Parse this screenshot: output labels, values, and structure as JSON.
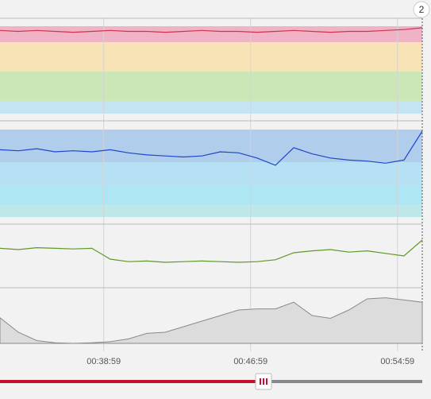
{
  "badge": "2",
  "chart_data": [
    {
      "type": "line",
      "color": "#d2334f",
      "xlim": [
        2000,
        3380
      ],
      "ylim": [
        0,
        100
      ],
      "x": [
        2000,
        2060,
        2120,
        2180,
        2240,
        2300,
        2360,
        2420,
        2480,
        2540,
        2600,
        2660,
        2720,
        2780,
        2840,
        2900,
        2960,
        3020,
        3080,
        3140,
        3200,
        3260,
        3320,
        3380
      ],
      "values": [
        91,
        90,
        91,
        90,
        89,
        90,
        91,
        90,
        90,
        89,
        90,
        91,
        90,
        90,
        89,
        90,
        91,
        90,
        89,
        90,
        90,
        91,
        92,
        94
      ]
    },
    {
      "type": "line",
      "color": "#1f47c8",
      "xlim": [
        2000,
        3380
      ],
      "ylim": [
        0,
        100
      ],
      "x": [
        2000,
        2060,
        2120,
        2180,
        2240,
        2300,
        2360,
        2420,
        2480,
        2540,
        2600,
        2660,
        2720,
        2780,
        2840,
        2900,
        2960,
        3020,
        3080,
        3140,
        3200,
        3260,
        3320,
        3380
      ],
      "values": [
        72,
        71,
        73,
        70,
        71,
        70,
        72,
        69,
        67,
        66,
        65,
        66,
        70,
        69,
        64,
        57,
        74,
        68,
        64,
        62,
        61,
        59,
        62,
        90
      ]
    },
    {
      "type": "line",
      "color": "#5d9a2a",
      "xlim": [
        2000,
        3380
      ],
      "ylim": [
        0,
        100
      ],
      "x": [
        2000,
        2060,
        2120,
        2180,
        2240,
        2300,
        2360,
        2420,
        2480,
        2540,
        2600,
        2660,
        2720,
        2780,
        2840,
        2900,
        2960,
        3020,
        3080,
        3140,
        3200,
        3260,
        3320,
        3380
      ],
      "values": [
        62,
        60,
        63,
        62,
        61,
        62,
        45,
        41,
        42,
        40,
        41,
        42,
        41,
        40,
        41,
        44,
        55,
        58,
        60,
        56,
        58,
        54,
        50,
        75
      ]
    },
    {
      "type": "area",
      "color": "#8a8a8a",
      "xlim": [
        2000,
        3380
      ],
      "ylim": [
        0,
        100
      ],
      "x": [
        2000,
        2060,
        2120,
        2180,
        2240,
        2300,
        2360,
        2420,
        2480,
        2540,
        2600,
        2660,
        2720,
        2780,
        2840,
        2900,
        2960,
        3020,
        3080,
        3140,
        3200,
        3260,
        3320,
        3380
      ],
      "values": [
        46,
        20,
        5,
        1,
        0,
        1,
        3,
        8,
        18,
        20,
        30,
        40,
        50,
        60,
        62,
        62,
        74,
        50,
        45,
        60,
        80,
        82,
        78,
        74
      ],
      "xticks": [
        {
          "value": 2339,
          "label": "00:38:59"
        },
        {
          "value": 2819,
          "label": "00:46:59"
        },
        {
          "value": 3299,
          "label": "00:54:59"
        }
      ]
    }
  ]
}
